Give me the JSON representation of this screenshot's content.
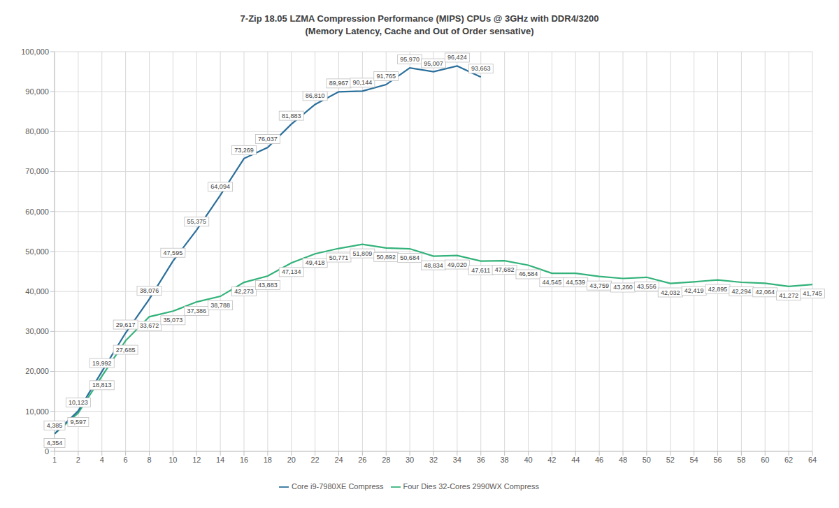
{
  "chart_data": {
    "type": "line",
    "title": "7-Zip 18.05 LZMA Compression Performance (MIPS) CPUs @ 3GHz with DDR4/3200",
    "subtitle": "(Memory Latency, Cache and Out of Order sensative)",
    "categories": [
      "1",
      "2",
      "4",
      "6",
      "8",
      "10",
      "12",
      "14",
      "16",
      "18",
      "20",
      "22",
      "24",
      "26",
      "28",
      "30",
      "32",
      "34",
      "36",
      "38",
      "40",
      "42",
      "44",
      "46",
      "48",
      "50",
      "52",
      "54",
      "56",
      "58",
      "60",
      "62",
      "64"
    ],
    "series": [
      {
        "name": "Four Dies 32-Cores 2990WX Compress",
        "color": "#33b27a",
        "values": [
          4354,
          9597,
          18813,
          27685,
          33672,
          35073,
          37386,
          38788,
          42273,
          43883,
          47134,
          49418,
          50771,
          51809,
          50892,
          50684,
          48834,
          49020,
          47611,
          47682,
          46584,
          44545,
          44539,
          43759,
          43260,
          43556,
          42032,
          42419,
          42895,
          42294,
          42064,
          41272,
          41745
        ],
        "value_labels": [
          "4,354",
          "9,597",
          "18,813",
          "27,685",
          "33,672",
          "35,073",
          "37,386",
          "38,788",
          "42,273",
          "43,883",
          "47,134",
          "49,418",
          "50,771",
          "51,809",
          "50,892",
          "50,684",
          "48,834",
          "49,020",
          "47,611",
          "47,682",
          "46,584",
          "44,545",
          "44,539",
          "43,759",
          "43,260",
          "43,556",
          "42,032",
          "42,419",
          "42,895",
          "42,294",
          "42,064",
          "41,272",
          "41,745"
        ]
      },
      {
        "name": "Core i9-7980XE Compress",
        "color": "#2b6f9b",
        "values": [
          4385,
          10123,
          19992,
          29617,
          38076,
          47595,
          55375,
          64094,
          73269,
          76037,
          81883,
          86810,
          89967,
          90144,
          91765,
          95970,
          95007,
          96424,
          93663,
          null,
          null,
          null,
          null,
          null,
          null,
          null,
          null,
          null,
          null,
          null,
          null,
          null,
          null
        ],
        "value_labels": [
          "4,385",
          "10,123",
          "19,992",
          "29,617",
          "38,076",
          "47,595",
          "55,375",
          "64,094",
          "73,269",
          "76,037",
          "81,883",
          "86,810",
          "89,967",
          "90,144",
          "91,765",
          "95,970",
          "95,007",
          "96,424",
          "93,663",
          null,
          null,
          null,
          null,
          null,
          null,
          null,
          null,
          null,
          null,
          null,
          null,
          null,
          null
        ]
      }
    ],
    "ylim": [
      0,
      100000
    ],
    "yticks": [
      0,
      {
        "value": 10000,
        "label": "10,000"
      },
      {
        "value": 20000,
        "label": "20,000"
      },
      {
        "value": 30000,
        "label": "30,000"
      },
      {
        "value": 40000,
        "label": "40,000"
      },
      {
        "value": 50000,
        "label": "50,000"
      },
      {
        "value": 60000,
        "label": "60,000"
      },
      {
        "value": 70000,
        "label": "70,000"
      },
      {
        "value": 80000,
        "label": "80,000"
      },
      {
        "value": 90000,
        "label": "90,000"
      },
      {
        "value": 100000,
        "label": "100,000"
      }
    ],
    "grid": true,
    "legend": "bottom",
    "data_labels": true
  }
}
